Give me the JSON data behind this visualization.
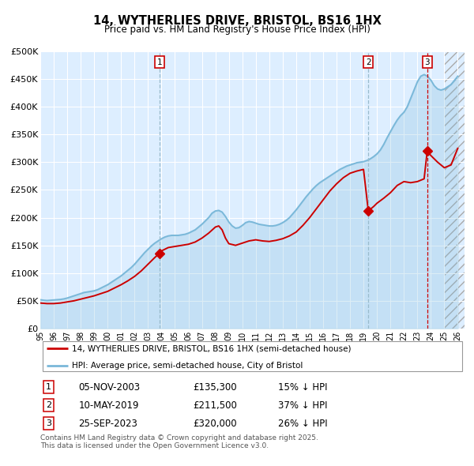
{
  "title": "14, WYTHERLIES DRIVE, BRISTOL, BS16 1HX",
  "subtitle": "Price paid vs. HM Land Registry's House Price Index (HPI)",
  "hpi_color": "#7ab8d9",
  "price_color": "#cc0000",
  "bg_color": "#ddeeff",
  "grid_color": "#ffffff",
  "sale_marker_color": "#cc0000",
  "vline_color_blue": "#99bbcc",
  "vline_color_red": "#cc0000",
  "sales": [
    {
      "num": 1,
      "date": "05-NOV-2003",
      "price": 135300,
      "pct": "15%",
      "x_year": 2003.84
    },
    {
      "num": 2,
      "date": "10-MAY-2019",
      "price": 211500,
      "pct": "37%",
      "x_year": 2019.36
    },
    {
      "num": 3,
      "date": "25-SEP-2023",
      "price": 320000,
      "pct": "26%",
      "x_year": 2023.73
    }
  ],
  "legend_label_red": "14, WYTHERLIES DRIVE, BRISTOL, BS16 1HX (semi-detached house)",
  "legend_label_blue": "HPI: Average price, semi-detached house, City of Bristol",
  "footer": "Contains HM Land Registry data © Crown copyright and database right 2025.\nThis data is licensed under the Open Government Licence v3.0.",
  "ylim": [
    0,
    500000
  ],
  "xlim": [
    1995.0,
    2026.5
  ],
  "yticks": [
    0,
    50000,
    100000,
    150000,
    200000,
    250000,
    300000,
    350000,
    400000,
    450000,
    500000
  ],
  "ytick_labels": [
    "£0",
    "£50K",
    "£100K",
    "£150K",
    "£200K",
    "£250K",
    "£300K",
    "£350K",
    "£400K",
    "£450K",
    "£500K"
  ],
  "xtick_years": [
    1995,
    1996,
    1997,
    1998,
    1999,
    2000,
    2001,
    2002,
    2003,
    2004,
    2005,
    2006,
    2007,
    2008,
    2009,
    2010,
    2011,
    2012,
    2013,
    2014,
    2015,
    2016,
    2017,
    2018,
    2019,
    2020,
    2021,
    2022,
    2023,
    2024,
    2025,
    2026
  ],
  "hpi_data": [
    [
      1995.0,
      52000
    ],
    [
      1995.25,
      51000
    ],
    [
      1995.5,
      50500
    ],
    [
      1995.75,
      51000
    ],
    [
      1996.0,
      51500
    ],
    [
      1996.25,
      52000
    ],
    [
      1996.5,
      52500
    ],
    [
      1996.75,
      53500
    ],
    [
      1997.0,
      55000
    ],
    [
      1997.25,
      57000
    ],
    [
      1997.5,
      59000
    ],
    [
      1997.75,
      61000
    ],
    [
      1998.0,
      63000
    ],
    [
      1998.25,
      65000
    ],
    [
      1998.5,
      66000
    ],
    [
      1998.75,
      67000
    ],
    [
      1999.0,
      68000
    ],
    [
      1999.25,
      70000
    ],
    [
      1999.5,
      73000
    ],
    [
      1999.75,
      76000
    ],
    [
      2000.0,
      79000
    ],
    [
      2000.25,
      83000
    ],
    [
      2000.5,
      87000
    ],
    [
      2000.75,
      91000
    ],
    [
      2001.0,
      95000
    ],
    [
      2001.25,
      100000
    ],
    [
      2001.5,
      105000
    ],
    [
      2001.75,
      110000
    ],
    [
      2002.0,
      116000
    ],
    [
      2002.25,
      123000
    ],
    [
      2002.5,
      130000
    ],
    [
      2002.75,
      137000
    ],
    [
      2003.0,
      143000
    ],
    [
      2003.25,
      149000
    ],
    [
      2003.5,
      154000
    ],
    [
      2003.75,
      158000
    ],
    [
      2004.0,
      162000
    ],
    [
      2004.25,
      165000
    ],
    [
      2004.5,
      167000
    ],
    [
      2004.75,
      168000
    ],
    [
      2005.0,
      168000
    ],
    [
      2005.25,
      168000
    ],
    [
      2005.5,
      169000
    ],
    [
      2005.75,
      170000
    ],
    [
      2006.0,
      172000
    ],
    [
      2006.25,
      175000
    ],
    [
      2006.5,
      178000
    ],
    [
      2006.75,
      183000
    ],
    [
      2007.0,
      188000
    ],
    [
      2007.25,
      194000
    ],
    [
      2007.5,
      200000
    ],
    [
      2007.75,
      208000
    ],
    [
      2008.0,
      212000
    ],
    [
      2008.25,
      213000
    ],
    [
      2008.5,
      210000
    ],
    [
      2008.75,
      202000
    ],
    [
      2009.0,
      192000
    ],
    [
      2009.25,
      185000
    ],
    [
      2009.5,
      181000
    ],
    [
      2009.75,
      182000
    ],
    [
      2010.0,
      186000
    ],
    [
      2010.25,
      191000
    ],
    [
      2010.5,
      193000
    ],
    [
      2010.75,
      192000
    ],
    [
      2011.0,
      190000
    ],
    [
      2011.25,
      188000
    ],
    [
      2011.5,
      187000
    ],
    [
      2011.75,
      186000
    ],
    [
      2012.0,
      185000
    ],
    [
      2012.25,
      185000
    ],
    [
      2012.5,
      186000
    ],
    [
      2012.75,
      188000
    ],
    [
      2013.0,
      191000
    ],
    [
      2013.25,
      195000
    ],
    [
      2013.5,
      200000
    ],
    [
      2013.75,
      207000
    ],
    [
      2014.0,
      214000
    ],
    [
      2014.25,
      222000
    ],
    [
      2014.5,
      230000
    ],
    [
      2014.75,
      238000
    ],
    [
      2015.0,
      245000
    ],
    [
      2015.25,
      252000
    ],
    [
      2015.5,
      258000
    ],
    [
      2015.75,
      263000
    ],
    [
      2016.0,
      267000
    ],
    [
      2016.25,
      271000
    ],
    [
      2016.5,
      275000
    ],
    [
      2016.75,
      279000
    ],
    [
      2017.0,
      283000
    ],
    [
      2017.25,
      287000
    ],
    [
      2017.5,
      290000
    ],
    [
      2017.75,
      293000
    ],
    [
      2018.0,
      295000
    ],
    [
      2018.25,
      297000
    ],
    [
      2018.5,
      299000
    ],
    [
      2018.75,
      300000
    ],
    [
      2019.0,
      301000
    ],
    [
      2019.25,
      303000
    ],
    [
      2019.5,
      306000
    ],
    [
      2019.75,
      310000
    ],
    [
      2020.0,
      315000
    ],
    [
      2020.25,
      322000
    ],
    [
      2020.5,
      332000
    ],
    [
      2020.75,
      344000
    ],
    [
      2021.0,
      355000
    ],
    [
      2021.25,
      366000
    ],
    [
      2021.5,
      376000
    ],
    [
      2021.75,
      384000
    ],
    [
      2022.0,
      390000
    ],
    [
      2022.25,
      400000
    ],
    [
      2022.5,
      415000
    ],
    [
      2022.75,
      430000
    ],
    [
      2023.0,
      445000
    ],
    [
      2023.25,
      455000
    ],
    [
      2023.5,
      458000
    ],
    [
      2023.75,
      455000
    ],
    [
      2024.0,
      448000
    ],
    [
      2024.25,
      438000
    ],
    [
      2024.5,
      432000
    ],
    [
      2024.75,
      430000
    ],
    [
      2025.0,
      432000
    ],
    [
      2025.5,
      440000
    ],
    [
      2026.0,
      455000
    ]
  ],
  "price_data": [
    [
      1995.0,
      46000
    ],
    [
      1995.5,
      45000
    ],
    [
      1996.0,
      45000
    ],
    [
      1996.5,
      46000
    ],
    [
      1997.0,
      48000
    ],
    [
      1997.5,
      50000
    ],
    [
      1998.0,
      53000
    ],
    [
      1998.5,
      56000
    ],
    [
      1999.0,
      59000
    ],
    [
      1999.5,
      63000
    ],
    [
      2000.0,
      67000
    ],
    [
      2000.5,
      73000
    ],
    [
      2001.0,
      79000
    ],
    [
      2001.5,
      86000
    ],
    [
      2002.0,
      94000
    ],
    [
      2002.5,
      104000
    ],
    [
      2003.0,
      116000
    ],
    [
      2003.5,
      128000
    ],
    [
      2003.84,
      135300
    ],
    [
      2004.0,
      140000
    ],
    [
      2004.5,
      146000
    ],
    [
      2005.0,
      148000
    ],
    [
      2005.5,
      150000
    ],
    [
      2006.0,
      152000
    ],
    [
      2006.5,
      156000
    ],
    [
      2007.0,
      163000
    ],
    [
      2007.5,
      172000
    ],
    [
      2008.0,
      183000
    ],
    [
      2008.25,
      185000
    ],
    [
      2008.5,
      178000
    ],
    [
      2008.75,
      163000
    ],
    [
      2009.0,
      153000
    ],
    [
      2009.5,
      150000
    ],
    [
      2010.0,
      154000
    ],
    [
      2010.5,
      158000
    ],
    [
      2011.0,
      160000
    ],
    [
      2011.5,
      158000
    ],
    [
      2012.0,
      157000
    ],
    [
      2012.5,
      159000
    ],
    [
      2013.0,
      162000
    ],
    [
      2013.5,
      167000
    ],
    [
      2014.0,
      174000
    ],
    [
      2014.5,
      186000
    ],
    [
      2015.0,
      200000
    ],
    [
      2015.5,
      216000
    ],
    [
      2016.0,
      232000
    ],
    [
      2016.5,
      248000
    ],
    [
      2017.0,
      261000
    ],
    [
      2017.5,
      272000
    ],
    [
      2018.0,
      280000
    ],
    [
      2018.5,
      284000
    ],
    [
      2019.0,
      287000
    ],
    [
      2019.36,
      211500
    ],
    [
      2019.5,
      215000
    ],
    [
      2019.75,
      220000
    ],
    [
      2020.0,
      226000
    ],
    [
      2020.5,
      235000
    ],
    [
      2021.0,
      245000
    ],
    [
      2021.5,
      258000
    ],
    [
      2022.0,
      265000
    ],
    [
      2022.5,
      263000
    ],
    [
      2023.0,
      265000
    ],
    [
      2023.5,
      270000
    ],
    [
      2023.73,
      320000
    ],
    [
      2024.0,
      312000
    ],
    [
      2024.5,
      300000
    ],
    [
      2025.0,
      290000
    ],
    [
      2025.5,
      295000
    ],
    [
      2026.0,
      325000
    ]
  ]
}
